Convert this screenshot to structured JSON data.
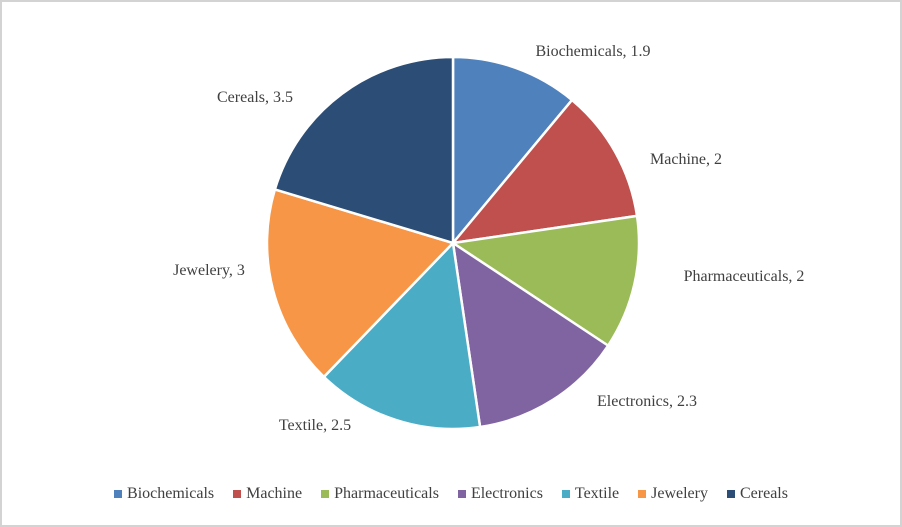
{
  "chart_data": {
    "type": "pie",
    "title": "",
    "categories": [
      "Biochemicals",
      "Machine",
      "Pharmaceuticals",
      "Electronics",
      "Textile",
      "Jewelery",
      "Cereals"
    ],
    "values": [
      1.9,
      2,
      2,
      2.3,
      2.5,
      3,
      3.5
    ],
    "total": 17.2,
    "colors": [
      "#4F81BD",
      "#C0504D",
      "#9BBB59",
      "#8064A2",
      "#4BACC6",
      "#F79646",
      "#2C4D75"
    ],
    "data_labels": [
      "Biochemicals, 1.9",
      "Machine, 2",
      "Pharmaceuticals, 2",
      "Electronics, 2.3",
      "Textile, 2.5",
      "Jewelery, 3",
      "Cereals, 3.5"
    ],
    "start_angle_deg": 0,
    "direction": "clockwise",
    "legend_position": "bottom",
    "slice_border_color": "#FFFFFF",
    "text_color": "#404040"
  }
}
